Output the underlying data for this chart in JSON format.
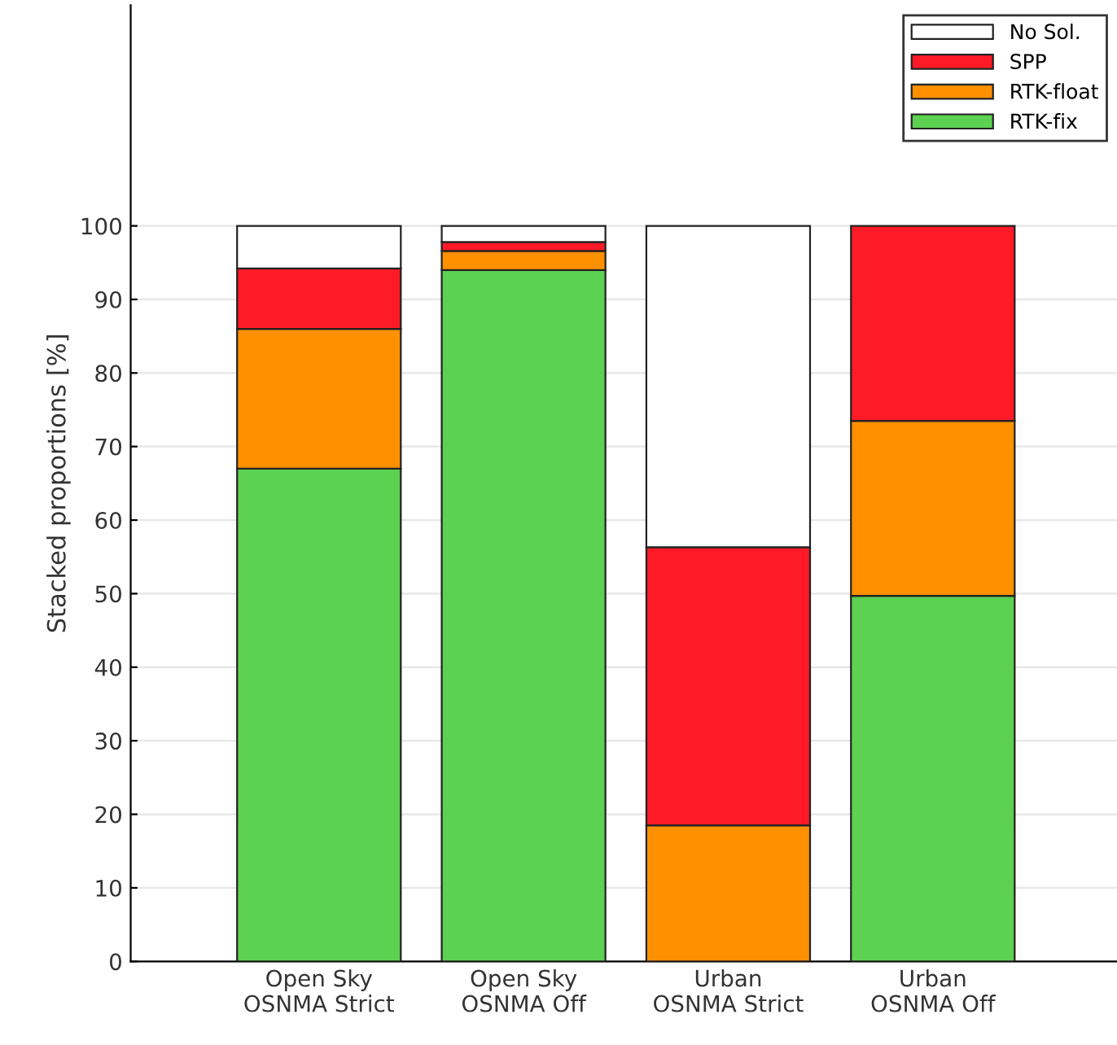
{
  "chart_data": {
    "type": "bar",
    "stacked": true,
    "ylabel": "Stacked proportions [%]",
    "categories": [
      "Open Sky\nOSNMA Strict",
      "Open Sky\nOSNMA Off",
      "Urban\nOSNMA Strict",
      "Urban\nOSNMA Off"
    ],
    "series": [
      {
        "name": "RTK-fix",
        "color": "#5cd152",
        "values": [
          67,
          94,
          null,
          49.7
        ]
      },
      {
        "name": "RTK-float",
        "color": "#ff9000",
        "values": [
          19,
          2.6,
          18.5,
          23.8
        ]
      },
      {
        "name": "SPP",
        "color": "#ff1a27",
        "values": [
          8.2,
          1.2,
          37.8,
          26.5
        ]
      },
      {
        "name": "No Sol.",
        "color": "#ffffff",
        "values": [
          5.8,
          2.2,
          43.7,
          null
        ]
      }
    ],
    "ylim": [
      0,
      130
    ],
    "yticks": [
      0,
      10,
      20,
      30,
      40,
      50,
      60,
      70,
      80,
      90,
      100
    ],
    "grid": "y",
    "legend": "top right"
  }
}
